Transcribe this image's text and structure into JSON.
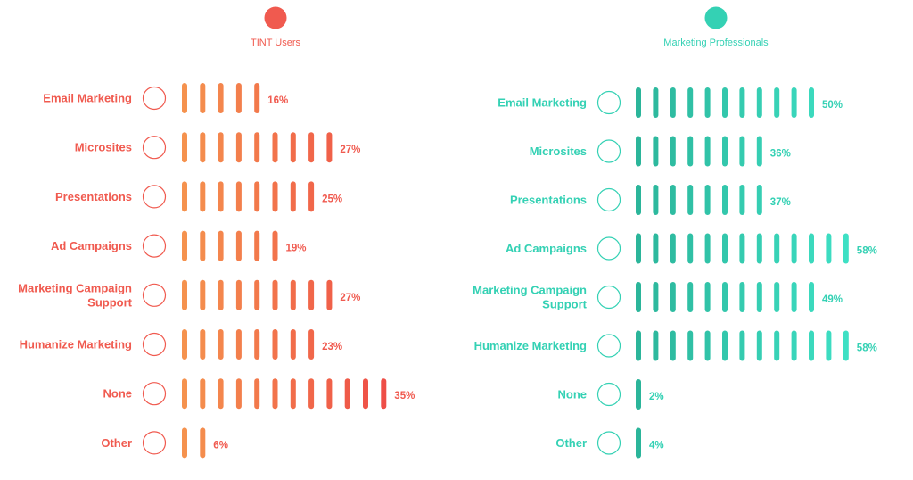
{
  "chart_data": [
    {
      "type": "bar",
      "title": "TINT Users",
      "color_start": "#F5924E",
      "color_end": "#EE4E47",
      "label_color": "#F05A4F",
      "categories": [
        "Email Marketing",
        "Microsites",
        "Presentations",
        "Ad Campaigns",
        "Marketing Campaign Support",
        "Humanize Marketing",
        "None",
        "Other"
      ],
      "category_lines": [
        [
          "Email Marketing"
        ],
        [
          "Microsites"
        ],
        [
          "Presentations"
        ],
        [
          "Ad Campaigns"
        ],
        [
          "Marketing Campaign",
          "Support"
        ],
        [
          "Humanize Marketing"
        ],
        [
          "None"
        ],
        [
          "Other"
        ]
      ],
      "values": [
        16,
        27,
        25,
        19,
        27,
        23,
        35,
        6
      ],
      "value_labels": [
        "16%",
        "27%",
        "25%",
        "19%",
        "27%",
        "23%",
        "35%",
        "6%"
      ],
      "unit": "%",
      "percent_per_stripe": 3
    },
    {
      "type": "bar",
      "title": "Marketing Professionals",
      "color_start": "#2BB59A",
      "color_end": "#3EE0C4",
      "label_color": "#34D1B4",
      "categories": [
        "Email Marketing",
        "Microsites",
        "Presentations",
        "Ad Campaigns",
        "Marketing Campaign Support",
        "Humanize Marketing",
        "None",
        "Other"
      ],
      "category_lines": [
        [
          "Email Marketing"
        ],
        [
          "Microsites"
        ],
        [
          "Presentations"
        ],
        [
          "Ad Campaigns"
        ],
        [
          "Marketing Campaign",
          "Support"
        ],
        [
          "Humanize Marketing"
        ],
        [
          "None"
        ],
        [
          "Other"
        ]
      ],
      "values": [
        50,
        36,
        37,
        58,
        49,
        58,
        2,
        4
      ],
      "value_labels": [
        "50%",
        "36%",
        "37%",
        "58%",
        "49%",
        "58%",
        "2%",
        "4%"
      ],
      "unit": "%",
      "percent_per_stripe": 4.5
    }
  ]
}
